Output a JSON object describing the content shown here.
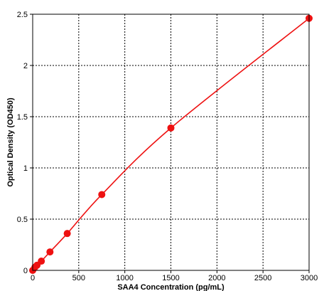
{
  "chart_data": {
    "type": "scatter",
    "title": "",
    "xlabel": "SAA4 Concentration (pg/mL)",
    "ylabel": "Optical Density (OD450)",
    "xlim": [
      0,
      3000
    ],
    "ylim": [
      0,
      2.5
    ],
    "x_ticks": [
      0,
      500,
      1000,
      1500,
      2000,
      2500,
      3000
    ],
    "y_ticks": [
      0,
      0.5,
      1,
      1.5,
      2,
      2.5
    ],
    "x_tick_labels": [
      "0",
      "500",
      "1000",
      "1500",
      "2000",
      "2500",
      "3000"
    ],
    "y_tick_labels": [
      "0",
      "0.5",
      "1",
      "1.5",
      "2",
      "2.5"
    ],
    "grid": true,
    "grid_style": "dotted",
    "series": [
      {
        "color": "#ee1111",
        "x": [
          0,
          23.4,
          46.9,
          93.8,
          187.5,
          375,
          750,
          1500,
          3000
        ],
        "y": [
          0.0,
          0.03,
          0.05,
          0.09,
          0.18,
          0.36,
          0.74,
          1.39,
          2.46
        ],
        "fit_line": true
      }
    ]
  }
}
